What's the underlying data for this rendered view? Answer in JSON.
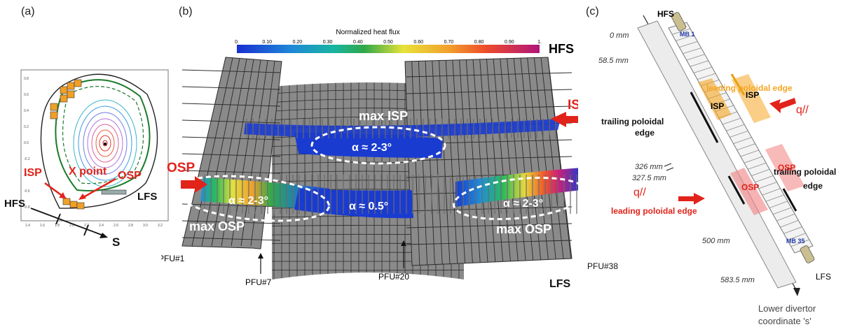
{
  "panel_a": {
    "label": "(a)",
    "isp": "ISP",
    "xpoint": "X point",
    "osp": "OSP",
    "hfs": "HFS",
    "lfs": "LFS",
    "s": "S",
    "yticks": [
      "0.8",
      "0.6",
      "0.4",
      "0.2",
      "0.0",
      "-0.2",
      "-0.4",
      "-0.6",
      "-0.8"
    ],
    "xticks": [
      "1.4",
      "1.6",
      "1.8",
      "2.0",
      "2.2",
      "2.4",
      "2.6",
      "2.8",
      "3.0",
      "3.2"
    ]
  },
  "panel_b": {
    "label": "(b)",
    "colorbar_title": "Normalized heat flux",
    "colorbar_ticks": [
      "0.",
      "0.10",
      "0.20",
      "0.30",
      "0.40",
      "0.50",
      "0.60",
      "0.70",
      "0.80",
      "0.90",
      "1."
    ],
    "hfs": "HFS",
    "lfs": "LFS",
    "isp": "ISP",
    "osp": "OSP",
    "max_isp": "max ISP",
    "max_osp_left": "max OSP",
    "max_osp_right": "max OSP",
    "alpha_isp": "α ≈ 2-3°",
    "alpha_osp_left": "α ≈ 2-3°",
    "alpha_mid": "α ≈ 0.5°",
    "alpha_osp_right": "α ≈ 2-3°",
    "pfu1": "PFU#1",
    "pfu7": "PFU#7",
    "pfu20": "PFU#20",
    "pfu38": "PFU#38"
  },
  "panel_c": {
    "label": "(c)",
    "hfs": "HFS",
    "lfs": "LFS",
    "mb1": "MB 1",
    "mb35": "MB 35",
    "d0": "0 mm",
    "d585": "58.5 mm",
    "d326": "326 mm",
    "d3275": "327.5 mm",
    "d500": "500 mm",
    "d5835": "583.5 mm",
    "leading_top": "leading poloidal edge",
    "leading_bottom": "leading poloidal edge",
    "trailing_left_1": "trailing poloidal",
    "trailing_left_2": "edge",
    "trailing_right_1": "trailing poloidal",
    "trailing_right_2": "edge",
    "q_top": "q//",
    "q_bottom": "q//",
    "isp_a": "ISP",
    "isp_b": "ISP",
    "osp_a": "OSP",
    "osp_b": "OSP",
    "coord_1": "Lower divertor",
    "coord_2": "coordinate 's'"
  },
  "colors": {
    "tile": "#8a8a8a",
    "tile_line": "#2a2a2a",
    "arrow_red": "#e2231a",
    "orange": "#f5a623",
    "blue_label": "#1f3aa6"
  }
}
